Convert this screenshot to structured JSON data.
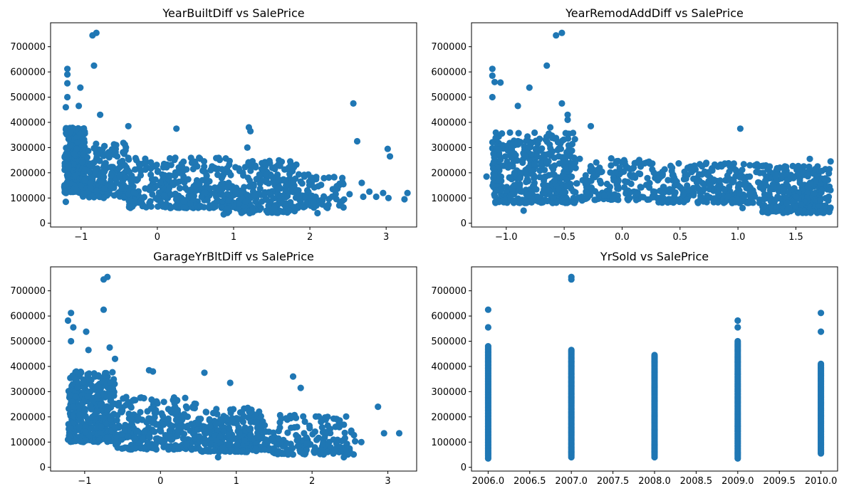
{
  "figure": {
    "colors": {
      "marker": "#1f77b4",
      "axes": "#000000",
      "background": "#ffffff"
    }
  },
  "chart_data": [
    {
      "type": "scatter",
      "title": "YearBuiltDiff vs SalePrice",
      "xlabel": "",
      "ylabel": "",
      "xlim": [
        -1.4,
        3.4
      ],
      "ylim": [
        -15000,
        795000
      ],
      "xticks": [
        -1,
        0,
        1,
        2,
        3
      ],
      "xtick_labels": [
        "−1",
        "0",
        "1",
        "2",
        "3"
      ],
      "yticks": [
        0,
        100000,
        200000,
        300000,
        400000,
        500000,
        600000,
        700000
      ],
      "ytick_labels": [
        "0",
        "100000",
        "200000",
        "300000",
        "400000",
        "500000",
        "600000",
        "700000"
      ],
      "grid": false,
      "outliers": [
        [
          -0.8,
          755000
        ],
        [
          -0.85,
          745000
        ],
        [
          -0.83,
          625000
        ],
        [
          -1.18,
          612000
        ],
        [
          -1.18,
          590000
        ],
        [
          -1.18,
          555000
        ],
        [
          -1.01,
          538000
        ],
        [
          -1.18,
          500000
        ],
        [
          2.57,
          475000
        ],
        [
          -1.03,
          465000
        ],
        [
          -1.2,
          460000
        ],
        [
          -0.75,
          430000
        ],
        [
          1.2,
          380000
        ],
        [
          -0.38,
          385000
        ],
        [
          0.25,
          375000
        ],
        [
          2.62,
          325000
        ],
        [
          3.02,
          295000
        ],
        [
          3.05,
          265000
        ],
        [
          1.22,
          365000
        ],
        [
          1.18,
          300000
        ],
        [
          2.68,
          160000
        ],
        [
          2.78,
          125000
        ],
        [
          2.87,
          105000
        ],
        [
          3.03,
          100000
        ],
        [
          3.28,
          120000
        ],
        [
          2.96,
          120000
        ],
        [
          3.24,
          95000
        ],
        [
          2.7,
          105000
        ],
        [
          2.52,
          115000
        ],
        [
          2.3,
          135000
        ],
        [
          2.1,
          40000
        ],
        [
          2.05,
          80000
        ],
        [
          -1.2,
          85000
        ],
        [
          0.87,
          35000
        ],
        [
          0.92,
          58000
        ]
      ],
      "clusters": [
        {
          "x": [
            -1.22,
            -0.95
          ],
          "y": [
            120000,
            380000
          ],
          "n": 320
        },
        {
          "x": [
            -1.0,
            -0.4
          ],
          "y": [
            100000,
            320000
          ],
          "n": 220
        },
        {
          "x": [
            -0.4,
            0.9
          ],
          "y": [
            60000,
            260000
          ],
          "n": 300
        },
        {
          "x": [
            0.9,
            1.85
          ],
          "y": [
            40000,
            250000
          ],
          "n": 260
        },
        {
          "x": [
            1.85,
            2.45
          ],
          "y": [
            60000,
            200000
          ],
          "n": 70
        }
      ],
      "seed": 11
    },
    {
      "type": "scatter",
      "title": "YearRemodAddDiff vs SalePrice",
      "xlabel": "",
      "ylabel": "",
      "xlim": [
        -1.3,
        1.86
      ],
      "ylim": [
        -15000,
        795000
      ],
      "xticks": [
        -1.0,
        -0.5,
        0.0,
        0.5,
        1.0,
        1.5
      ],
      "xtick_labels": [
        "−1.0",
        "−0.5",
        "0.0",
        "0.5",
        "1.0",
        "1.5"
      ],
      "yticks": [
        0,
        100000,
        200000,
        300000,
        400000,
        500000,
        600000,
        700000
      ],
      "ytick_labels": [
        "0",
        "100000",
        "200000",
        "300000",
        "400000",
        "500000",
        "600000",
        "700000"
      ],
      "grid": false,
      "outliers": [
        [
          -0.52,
          755000
        ],
        [
          -0.57,
          745000
        ],
        [
          -0.65,
          625000
        ],
        [
          -1.12,
          612000
        ],
        [
          -1.12,
          585000
        ],
        [
          -1.1,
          560000
        ],
        [
          -1.05,
          558000
        ],
        [
          -0.8,
          538000
        ],
        [
          -1.12,
          500000
        ],
        [
          -0.52,
          475000
        ],
        [
          -0.9,
          465000
        ],
        [
          -0.47,
          430000
        ],
        [
          -0.27,
          385000
        ],
        [
          1.02,
          375000
        ],
        [
          -0.47,
          410000
        ],
        [
          -0.62,
          380000
        ],
        [
          -1.17,
          185000
        ],
        [
          1.04,
          60000
        ],
        [
          0.95,
          80000
        ],
        [
          1.8,
          245000
        ],
        [
          1.62,
          255000
        ],
        [
          -0.85,
          50000
        ],
        [
          -0.6,
          80000
        ]
      ],
      "clusters": [
        {
          "x": [
            -1.12,
            -0.4
          ],
          "y": [
            80000,
            360000
          ],
          "n": 420
        },
        {
          "x": [
            -0.4,
            0.3
          ],
          "y": [
            90000,
            260000
          ],
          "n": 160
        },
        {
          "x": [
            0.3,
            1.2
          ],
          "y": [
            80000,
            240000
          ],
          "n": 260
        },
        {
          "x": [
            1.2,
            1.8
          ],
          "y": [
            40000,
            230000
          ],
          "n": 340
        }
      ],
      "seed": 23
    },
    {
      "type": "scatter",
      "title": "GarageYrBltDiff vs SalePrice",
      "xlabel": "",
      "ylabel": "",
      "xlim": [
        -1.45,
        3.38
      ],
      "ylim": [
        -15000,
        795000
      ],
      "xticks": [
        -1,
        0,
        1,
        2,
        3
      ],
      "xtick_labels": [
        "−1",
        "0",
        "1",
        "2",
        "3"
      ],
      "yticks": [
        0,
        100000,
        200000,
        300000,
        400000,
        500000,
        600000,
        700000
      ],
      "ytick_labels": [
        "0",
        "100000",
        "200000",
        "300000",
        "400000",
        "500000",
        "600000",
        "700000"
      ],
      "grid": false,
      "outliers": [
        [
          -0.7,
          755000
        ],
        [
          -0.75,
          745000
        ],
        [
          -0.75,
          625000
        ],
        [
          -1.18,
          612000
        ],
        [
          -1.22,
          582000
        ],
        [
          -1.15,
          555000
        ],
        [
          -0.98,
          538000
        ],
        [
          -1.18,
          500000
        ],
        [
          -0.67,
          475000
        ],
        [
          -0.95,
          465000
        ],
        [
          -0.6,
          430000
        ],
        [
          -0.15,
          385000
        ],
        [
          -0.1,
          380000
        ],
        [
          0.58,
          375000
        ],
        [
          1.75,
          360000
        ],
        [
          0.92,
          335000
        ],
        [
          1.85,
          315000
        ],
        [
          2.87,
          240000
        ],
        [
          2.95,
          135000
        ],
        [
          3.15,
          135000
        ],
        [
          2.65,
          100000
        ],
        [
          2.42,
          40000
        ],
        [
          0.76,
          40000
        ],
        [
          -1.22,
          110000
        ],
        [
          0.6,
          65000
        ],
        [
          1.55,
          65000
        ]
      ],
      "clusters": [
        {
          "x": [
            -1.22,
            -0.6
          ],
          "y": [
            100000,
            380000
          ],
          "n": 360
        },
        {
          "x": [
            -0.6,
            0.5
          ],
          "y": [
            70000,
            280000
          ],
          "n": 300
        },
        {
          "x": [
            0.5,
            1.35
          ],
          "y": [
            60000,
            240000
          ],
          "n": 260
        },
        {
          "x": [
            1.35,
            2.6
          ],
          "y": [
            50000,
            210000
          ],
          "n": 180
        }
      ],
      "seed": 37
    },
    {
      "type": "scatter",
      "title": "YrSold vs SalePrice",
      "xlabel": "",
      "ylabel": "",
      "xlim": [
        2005.8,
        2010.2
      ],
      "ylim": [
        -15000,
        795000
      ],
      "xticks": [
        2006.0,
        2006.5,
        2007.0,
        2007.5,
        2008.0,
        2008.5,
        2009.0,
        2009.5,
        2010.0
      ],
      "xtick_labels": [
        "2006.0",
        "2006.5",
        "2007.0",
        "2007.5",
        "2008.0",
        "2008.5",
        "2009.0",
        "2009.5",
        "2010.0"
      ],
      "yticks": [
        0,
        100000,
        200000,
        300000,
        400000,
        500000,
        600000,
        700000
      ],
      "ytick_labels": [
        "0",
        "100000",
        "200000",
        "300000",
        "400000",
        "500000",
        "600000",
        "700000"
      ],
      "grid": false,
      "columns": [
        {
          "x": 2006.0,
          "min": 35000,
          "dense_max": 480000,
          "extra": [
            555000,
            625000
          ]
        },
        {
          "x": 2007.0,
          "min": 40000,
          "dense_max": 465000,
          "extra": [
            745000,
            755000
          ]
        },
        {
          "x": 2008.0,
          "min": 40000,
          "dense_max": 445000,
          "extra": []
        },
        {
          "x": 2009.0,
          "min": 35000,
          "dense_max": 500000,
          "extra": [
            555000,
            582000
          ]
        },
        {
          "x": 2010.0,
          "min": 55000,
          "dense_max": 410000,
          "extra": [
            538000,
            612000
          ]
        }
      ],
      "seed": 51
    }
  ]
}
